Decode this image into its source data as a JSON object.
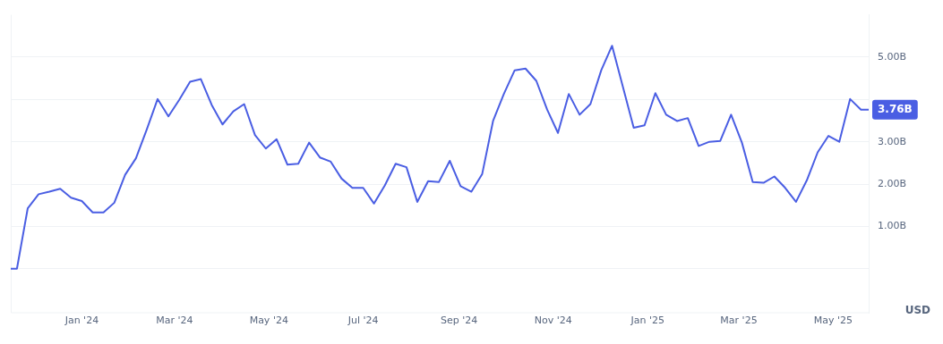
{
  "chart_data": {
    "type": "line",
    "x": [
      "2023-11-16",
      "2023-11-20",
      "2023-11-27",
      "2023-12-04",
      "2023-12-11",
      "2023-12-18",
      "2023-12-25",
      "2024-01-01",
      "2024-01-08",
      "2024-01-15",
      "2024-01-22",
      "2024-01-29",
      "2024-02-05",
      "2024-02-12",
      "2024-02-19",
      "2024-02-26",
      "2024-03-04",
      "2024-03-11",
      "2024-03-18",
      "2024-03-25",
      "2024-04-01",
      "2024-04-08",
      "2024-04-15",
      "2024-04-22",
      "2024-04-29",
      "2024-05-06",
      "2024-05-13",
      "2024-05-20",
      "2024-05-27",
      "2024-06-03",
      "2024-06-10",
      "2024-06-17",
      "2024-06-24",
      "2024-07-01",
      "2024-07-08",
      "2024-07-15",
      "2024-07-22",
      "2024-07-29",
      "2024-08-05",
      "2024-08-12",
      "2024-08-19",
      "2024-08-26",
      "2024-09-02",
      "2024-09-09",
      "2024-09-16",
      "2024-09-23",
      "2024-09-30",
      "2024-10-07",
      "2024-10-14",
      "2024-10-21",
      "2024-10-28",
      "2024-11-04",
      "2024-11-11",
      "2024-11-18",
      "2024-11-25",
      "2024-12-02",
      "2024-12-09",
      "2024-12-23",
      "2024-12-30",
      "2025-01-06",
      "2025-01-13",
      "2025-01-20",
      "2025-01-27",
      "2025-02-03",
      "2025-02-10",
      "2025-02-17",
      "2025-02-24",
      "2025-03-03",
      "2025-03-10",
      "2025-03-17",
      "2025-03-24",
      "2025-03-31",
      "2025-04-07",
      "2025-04-14",
      "2025-04-21",
      "2025-04-28",
      "2025-05-05",
      "2025-05-12",
      "2025-05-19",
      "2025-05-24"
    ],
    "series": [
      {
        "color": "#4a5ee3",
        "values": [
          0,
          0,
          1.43,
          1.76,
          1.82,
          1.89,
          1.68,
          1.6,
          1.33,
          1.33,
          1.56,
          2.22,
          2.61,
          3.29,
          4.01,
          3.6,
          3.99,
          4.42,
          4.48,
          3.87,
          3.41,
          3.72,
          3.89,
          3.16,
          2.84,
          3.06,
          2.46,
          2.48,
          2.98,
          2.63,
          2.53,
          2.13,
          1.91,
          1.91,
          1.54,
          1.97,
          2.48,
          2.4,
          1.58,
          2.07,
          2.05,
          2.55,
          1.95,
          1.82,
          2.24,
          3.49,
          4.13,
          4.69,
          4.73,
          4.44,
          3.76,
          3.21,
          4.13,
          3.64,
          3.89,
          4.69,
          5.27,
          3.33,
          3.39,
          4.15,
          3.64,
          3.49,
          3.56,
          2.9,
          3.0,
          3.02,
          3.64,
          2.98,
          2.05,
          2.03,
          2.18,
          1.91,
          1.58,
          2.09,
          2.75,
          3.14,
          3.0,
          4.01,
          3.76,
          3.76
        ]
      }
    ],
    "xlim": [
      "2023-11-16",
      "2025-05-24"
    ],
    "xticks": [
      {
        "value": "2024-01-01",
        "label": "Jan '24"
      },
      {
        "value": "2024-03-01",
        "label": "Mar '24"
      },
      {
        "value": "2024-05-01",
        "label": "May '24"
      },
      {
        "value": "2024-07-01",
        "label": "Jul '24"
      },
      {
        "value": "2024-09-01",
        "label": "Sep '24"
      },
      {
        "value": "2024-11-01",
        "label": "Nov '24"
      },
      {
        "value": "2025-01-01",
        "label": "Jan '25"
      },
      {
        "value": "2025-03-01",
        "label": "Mar '25"
      },
      {
        "value": "2025-05-01",
        "label": "May '25"
      }
    ],
    "ylim": [
      -1.04,
      6
    ],
    "yticks": [
      {
        "value": 0,
        "label": null
      },
      {
        "value": 1,
        "label": "1.00B"
      },
      {
        "value": 2,
        "label": "2.00B"
      },
      {
        "value": 3,
        "label": "3.00B"
      },
      {
        "value": 4,
        "label": null
      },
      {
        "value": 5,
        "label": "5.00B"
      }
    ],
    "grid": "y",
    "marker": "none",
    "line_style": "solid",
    "legend": false,
    "annotations": [
      {
        "text": "3.76B",
        "x": "2025-05-24",
        "y": 3.76
      },
      "USD"
    ]
  }
}
